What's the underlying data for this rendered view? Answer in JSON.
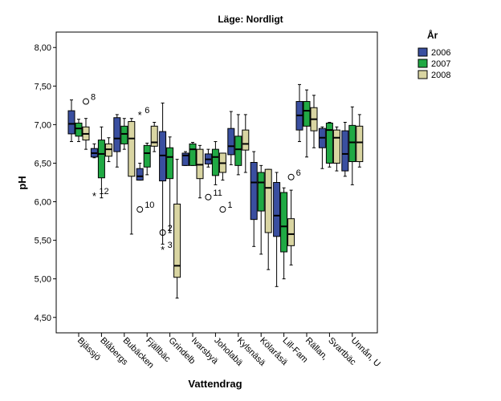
{
  "chart_data": {
    "type": "boxplot",
    "title": "Läge: Nordligt",
    "xlabel": "Vattendrag",
    "ylabel": "pH",
    "ylim": [
      4.3,
      8.2
    ],
    "yticks": [
      "4,50",
      "5,00",
      "5,50",
      "6,00",
      "6,50",
      "7,00",
      "7,50",
      "8,00"
    ],
    "ytick_values": [
      4.5,
      5.0,
      5.5,
      6.0,
      6.5,
      7.0,
      7.5,
      8.0
    ],
    "grid": false,
    "legend": {
      "title": "År",
      "placement": "top-right"
    },
    "categories": [
      "Bjässjö",
      "Blåbergs",
      "Bubäcken",
      "Fjällbäc",
      "Grindelb",
      "Ivarsbyä",
      "Joholabä",
      "Kylsnäsä",
      "Kölaråsä",
      "Lill-Fam",
      "Rällan,",
      "Svartbäc",
      "Unnån, U"
    ],
    "series": [
      {
        "name": "2006",
        "color": "#3a4fa0",
        "boxes": [
          {
            "low": 6.78,
            "q1": 6.88,
            "median": 7.01,
            "q3": 7.18,
            "high": 7.32
          },
          {
            "low": 6.57,
            "q1": 6.58,
            "median": 6.63,
            "q3": 6.69,
            "high": 6.75
          },
          {
            "low": 6.45,
            "q1": 6.65,
            "median": 6.82,
            "q3": 7.09,
            "high": 7.13
          },
          {
            "low": 6.28,
            "q1": 6.28,
            "median": 6.33,
            "q3": 6.43,
            "high": 6.5
          },
          {
            "low": 5.45,
            "q1": 6.27,
            "median": 6.6,
            "q3": 6.91,
            "high": 7.28
          },
          {
            "low": 6.47,
            "q1": 6.47,
            "median": 6.6,
            "q3": 6.63,
            "high": 6.65
          },
          {
            "low": 6.45,
            "q1": 6.49,
            "median": 6.55,
            "q3": 6.62,
            "high": 6.68
          },
          {
            "low": 6.48,
            "q1": 6.61,
            "median": 6.72,
            "q3": 6.95,
            "high": 7.17
          },
          {
            "low": 5.42,
            "q1": 5.77,
            "median": 6.25,
            "q3": 6.51,
            "high": 6.65
          },
          {
            "low": 4.9,
            "q1": 5.55,
            "median": 5.82,
            "q3": 6.25,
            "high": 6.38
          },
          {
            "low": 6.78,
            "q1": 6.93,
            "median": 7.12,
            "q3": 7.3,
            "high": 7.52
          },
          {
            "low": 6.43,
            "q1": 6.7,
            "median": 6.83,
            "q3": 6.95,
            "high": 6.97
          },
          {
            "low": 6.33,
            "q1": 6.4,
            "median": 6.62,
            "q3": 6.92,
            "high": 7.03
          }
        ]
      },
      {
        "name": "2007",
        "color": "#20a944",
        "boxes": [
          {
            "low": 6.78,
            "q1": 6.85,
            "median": 6.95,
            "q3": 7.02,
            "high": 7.07
          },
          {
            "low": 6.05,
            "q1": 6.31,
            "median": 6.62,
            "q3": 6.8,
            "high": 6.97
          },
          {
            "low": 6.68,
            "q1": 6.75,
            "median": 6.88,
            "q3": 6.98,
            "high": 7.08
          },
          {
            "low": 6.35,
            "q1": 6.45,
            "median": 6.63,
            "q3": 6.73,
            "high": 6.76
          },
          {
            "low": 5.6,
            "q1": 6.3,
            "median": 6.58,
            "q3": 6.7,
            "high": 6.84
          },
          {
            "low": 6.47,
            "q1": 6.47,
            "median": 6.68,
            "q3": 6.75,
            "high": 6.77
          },
          {
            "low": 6.22,
            "q1": 6.34,
            "median": 6.58,
            "q3": 6.68,
            "high": 6.78
          },
          {
            "low": 6.35,
            "q1": 6.47,
            "median": 6.68,
            "q3": 6.85,
            "high": 7.13
          },
          {
            "low": 5.32,
            "q1": 5.88,
            "median": 6.25,
            "q3": 6.38,
            "high": 6.47
          },
          {
            "low": 5.0,
            "q1": 5.35,
            "median": 5.68,
            "q3": 6.12,
            "high": 6.18
          },
          {
            "low": 6.58,
            "q1": 6.98,
            "median": 7.18,
            "q3": 7.3,
            "high": 7.45
          },
          {
            "low": 6.45,
            "q1": 6.5,
            "median": 6.93,
            "q3": 7.02,
            "high": 7.03
          },
          {
            "low": 6.22,
            "q1": 6.52,
            "median": 6.77,
            "q3": 6.99,
            "high": 7.23
          }
        ]
      },
      {
        "name": "2008",
        "color": "#d9d5a2",
        "boxes": [
          {
            "low": 6.68,
            "q1": 6.8,
            "median": 6.88,
            "q3": 6.97,
            "high": 7.08
          },
          {
            "low": 6.52,
            "q1": 6.59,
            "median": 6.68,
            "q3": 6.75,
            "high": 6.83
          },
          {
            "low": 5.58,
            "q1": 6.33,
            "median": 6.82,
            "q3": 7.04,
            "high": 7.08
          },
          {
            "low": 6.65,
            "q1": 6.72,
            "median": 6.77,
            "q3": 6.98,
            "high": 7.03
          },
          {
            "low": 4.75,
            "q1": 5.02,
            "median": 5.17,
            "q3": 5.97,
            "high": 6.55
          },
          {
            "low": 6.05,
            "q1": 6.3,
            "median": 6.48,
            "q3": 6.68,
            "high": 6.73
          },
          {
            "low": 6.28,
            "q1": 6.38,
            "median": 6.5,
            "q3": 6.63,
            "high": 6.63
          },
          {
            "low": 6.38,
            "q1": 6.67,
            "median": 6.75,
            "q3": 6.93,
            "high": 7.13
          },
          {
            "low": 5.12,
            "q1": 5.6,
            "median": 6.18,
            "q3": 6.42,
            "high": 6.42
          },
          {
            "low": 5.18,
            "q1": 5.43,
            "median": 5.58,
            "q3": 5.78,
            "high": 6.15
          },
          {
            "low": 6.7,
            "q1": 6.92,
            "median": 7.07,
            "q3": 7.22,
            "high": 7.38
          },
          {
            "low": 6.4,
            "q1": 6.5,
            "median": 6.83,
            "q3": 6.93,
            "high": 6.97
          },
          {
            "low": 6.45,
            "q1": 6.52,
            "median": 6.77,
            "q3": 6.98,
            "high": 7.13
          }
        ]
      }
    ],
    "outliers": [
      {
        "category": "Bjässjö",
        "series": "2008",
        "marker": "circle",
        "value": 7.3,
        "label": "8"
      },
      {
        "category": "Blåbergs",
        "series": "2006",
        "marker": "star",
        "value": 6.08,
        "label": "12"
      },
      {
        "category": "Fjällbäc",
        "series": "2006",
        "marker": "star",
        "value": 7.13,
        "label": "6"
      },
      {
        "category": "Fjällbäc",
        "series": "2006",
        "marker": "circle",
        "value": 5.9,
        "label": "10"
      },
      {
        "category": "Grindelb",
        "series": "2006",
        "marker": "circle",
        "value": 5.6,
        "label": "2"
      },
      {
        "category": "Grindelb",
        "series": "2006",
        "marker": "star",
        "value": 5.38,
        "label": "3"
      },
      {
        "category": "Joholabä",
        "series": "2006",
        "marker": "circle",
        "value": 6.06,
        "label": "11"
      },
      {
        "category": "Joholabä",
        "series": "2008",
        "marker": "circle",
        "value": 5.9,
        "label": "1"
      },
      {
        "category": "Lill-Fam",
        "series": "2008",
        "marker": "circle",
        "value": 6.32,
        "label": "6"
      }
    ]
  }
}
